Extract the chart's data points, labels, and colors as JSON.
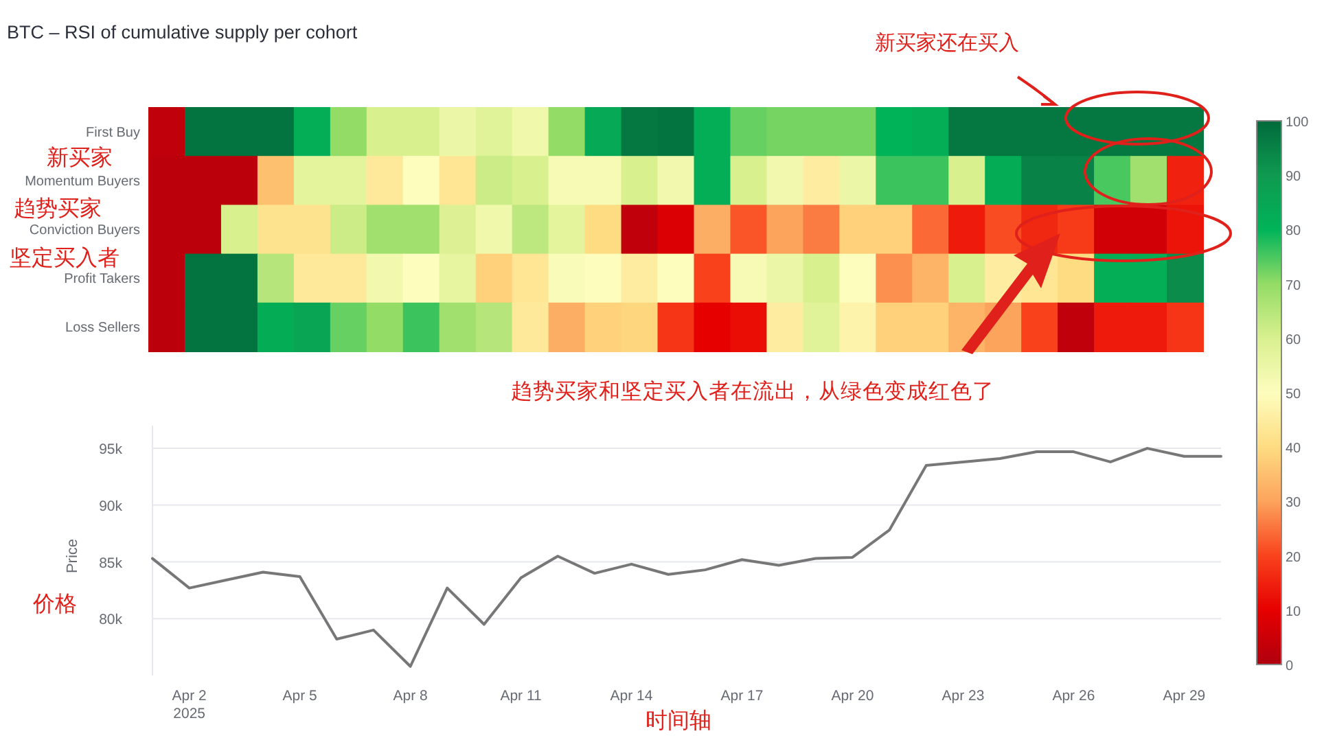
{
  "chart_data": [
    {
      "type": "heatmap",
      "title": "BTC – RSI of cumulative supply per cohort",
      "categories": [
        null,
        null,
        null,
        null,
        null,
        null,
        null,
        null,
        null,
        null,
        null,
        null,
        null,
        null,
        null,
        null,
        null,
        null,
        null,
        null,
        null,
        null,
        null,
        null,
        null,
        null,
        null,
        null,
        null
      ],
      "y_categories": [
        "First Buy",
        "Momentum Buyers",
        "Conviction Buyers",
        "Profit Takers",
        "Loss Sellers"
      ],
      "cells": [
        [
          3,
          98,
          98,
          98,
          82,
          70,
          60,
          60,
          55,
          58,
          54,
          70,
          84,
          97,
          98,
          82,
          73,
          72,
          72,
          72,
          80,
          82,
          97,
          97,
          97,
          97,
          97,
          97,
          97
        ],
        [
          2,
          2,
          2,
          35,
          57,
          57,
          44,
          50,
          43,
          62,
          60,
          52,
          52,
          60,
          53,
          82,
          60,
          53,
          45,
          55,
          76,
          76,
          60,
          83,
          95,
          95,
          75,
          68,
          15
        ],
        [
          2,
          2,
          60,
          42,
          42,
          62,
          68,
          68,
          59,
          54,
          64,
          57,
          40,
          3,
          8,
          32,
          22,
          30,
          26,
          38,
          38,
          24,
          14,
          21,
          16,
          19,
          6,
          6,
          13
        ],
        [
          2,
          98,
          98,
          65,
          44,
          44,
          53,
          50,
          56,
          38,
          43,
          51,
          50,
          45,
          50,
          20,
          52,
          55,
          60,
          50,
          28,
          33,
          60,
          45,
          43,
          40,
          82,
          82,
          93
        ],
        [
          2,
          98,
          98,
          83,
          86,
          73,
          70,
          76,
          68,
          65,
          44,
          32,
          38,
          39,
          18,
          10,
          12,
          45,
          58,
          47,
          38,
          38,
          33,
          30,
          20,
          3,
          14,
          14,
          18
        ]
      ],
      "clim": [
        0,
        100
      ],
      "cticks": [
        0,
        10,
        20,
        30,
        40,
        50,
        60,
        70,
        80,
        90,
        100
      ],
      "tick_labels": "y",
      "annotations": [
        "新买家还在买入",
        "新买家",
        "趋势买家",
        "坚定买入者",
        "趋势买家和坚定买入者在流出，从绿色变成红色了"
      ]
    },
    {
      "type": "line",
      "ylabel": "Price",
      "color": "#777777",
      "grid": "y",
      "x": [
        "2025-04-01",
        "2025-04-02",
        "2025-04-03",
        "2025-04-04",
        "2025-04-05",
        "2025-04-06",
        "2025-04-07",
        "2025-04-08",
        "2025-04-09",
        "2025-04-10",
        "2025-04-11",
        "2025-04-12",
        "2025-04-13",
        "2025-04-14",
        "2025-04-15",
        "2025-04-16",
        "2025-04-17",
        "2025-04-18",
        "2025-04-19",
        "2025-04-20",
        "2025-04-21",
        "2025-04-22",
        "2025-04-23",
        "2025-04-24",
        "2025-04-25",
        "2025-04-26",
        "2025-04-27",
        "2025-04-28",
        "2025-04-29",
        "2025-04-30"
      ],
      "values": [
        85300,
        82700,
        83400,
        84100,
        83700,
        78200,
        79000,
        75800,
        82700,
        79500,
        83600,
        85500,
        84000,
        84800,
        83900,
        84300,
        85200,
        84700,
        85300,
        85400,
        87800,
        93500,
        93800,
        94100,
        94700,
        94700,
        93800,
        95000,
        94300,
        94300
      ],
      "xlim": [
        "2025-04-01",
        "2025-04-30"
      ],
      "xticks": [
        {
          "value": "2025-04-02",
          "label": "Apr 2\n2025"
        },
        {
          "value": "2025-04-05",
          "label": "Apr 5"
        },
        {
          "value": "2025-04-08",
          "label": "Apr 8"
        },
        {
          "value": "2025-04-11",
          "label": "Apr 11"
        },
        {
          "value": "2025-04-14",
          "label": "Apr 14"
        },
        {
          "value": "2025-04-17",
          "label": "Apr 17"
        },
        {
          "value": "2025-04-20",
          "label": "Apr 20"
        },
        {
          "value": "2025-04-23",
          "label": "Apr 23"
        },
        {
          "value": "2025-04-26",
          "label": "Apr 26"
        },
        {
          "value": "2025-04-29",
          "label": "Apr 29"
        }
      ],
      "ylim": [
        75000,
        97000
      ],
      "yticks": [
        {
          "value": 80000,
          "label": "80k"
        },
        {
          "value": 85000,
          "label": "85k"
        },
        {
          "value": 90000,
          "label": "90k"
        },
        {
          "value": 95000,
          "label": "95k"
        }
      ],
      "annotations": [
        "价格",
        "时间轴"
      ]
    }
  ]
}
